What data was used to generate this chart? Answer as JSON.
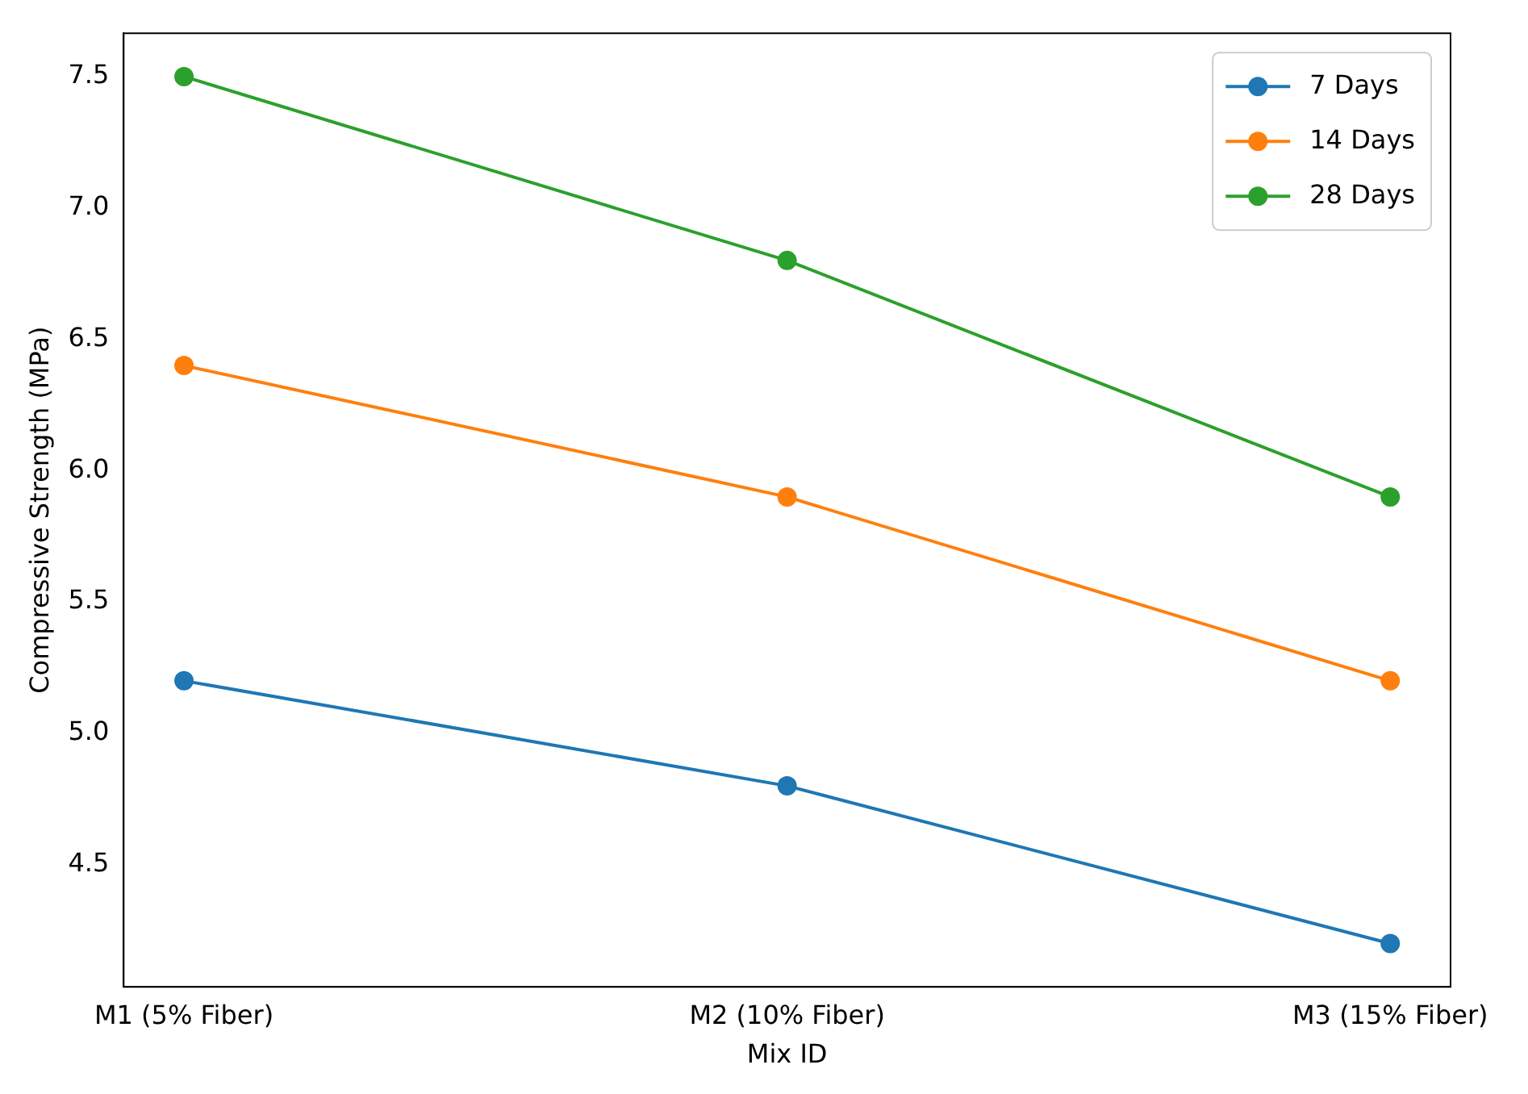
{
  "chart_data": {
    "type": "line",
    "xlabel": "Mix ID",
    "ylabel": "Compressive Strength (MPa)",
    "categories": [
      "M1 (5% Fiber)",
      "M2 (10% Fiber)",
      "M3 (15% Fiber)"
    ],
    "series": [
      {
        "name": "7 Days",
        "color": "#1f77b4",
        "values": [
          5.2,
          4.8,
          4.2
        ]
      },
      {
        "name": "14 Days",
        "color": "#ff7f0e",
        "values": [
          6.4,
          5.9,
          5.2
        ]
      },
      {
        "name": "28 Days",
        "color": "#2ca02c",
        "values": [
          7.5,
          6.8,
          5.9
        ]
      }
    ],
    "ylim": [
      4.035,
      7.665
    ],
    "yticks": [
      4.5,
      {
        "value": 5,
        "label": "5.0"
      },
      5.5,
      {
        "value": 6,
        "label": "6.0"
      },
      6.5,
      {
        "value": 7,
        "label": "7.0"
      },
      7.5
    ],
    "marker": "circle",
    "line_style": "solid",
    "grid": false,
    "legend": "top right"
  }
}
